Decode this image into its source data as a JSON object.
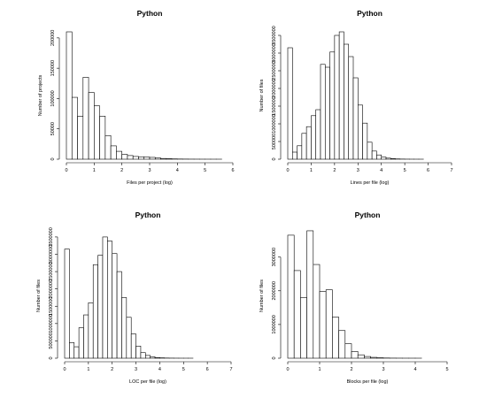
{
  "chart_data": [
    {
      "id": "files-per-project",
      "type": "bar",
      "title": "Python",
      "xlabel": "Files per project (log)",
      "ylabel": "Number of projects",
      "xlim": [
        0,
        6
      ],
      "xticks": [
        0,
        1,
        2,
        3,
        4,
        5,
        6
      ],
      "ylim": [
        0,
        210000
      ],
      "yticks": [
        0,
        50000,
        100000,
        150000,
        200000
      ],
      "bin_width": 0.2,
      "bin_start": 0,
      "values": [
        210000,
        102000,
        71000,
        135000,
        110000,
        88000,
        71000,
        39000,
        22000,
        13000,
        8000,
        6000,
        4500,
        4000,
        3500,
        3000,
        2000,
        1200,
        800,
        500,
        300,
        200,
        120,
        80,
        50,
        30,
        20,
        10,
        5,
        3
      ]
    },
    {
      "id": "lines-per-file",
      "type": "bar",
      "title": "Python",
      "xlabel": "Lines per file (log)",
      "ylabel": "Number of files",
      "xlim": [
        0,
        7
      ],
      "xticks": [
        0,
        1,
        2,
        3,
        4,
        5,
        6,
        7
      ],
      "ylim": [
        0,
        3600000
      ],
      "yticks": [
        0,
        500000,
        1000000,
        1500000,
        2000000,
        2500000,
        3000000,
        3500000
      ],
      "bin_width": 0.2,
      "bin_start": 0,
      "values": [
        3150000,
        200000,
        380000,
        730000,
        920000,
        1230000,
        1400000,
        2680000,
        2600000,
        3030000,
        3500000,
        3600000,
        3250000,
        2900000,
        2300000,
        1530000,
        1020000,
        480000,
        230000,
        120000,
        60000,
        30000,
        15000,
        8000,
        4000,
        2000,
        1000,
        500,
        250,
        120,
        60,
        30,
        15,
        8
      ]
    },
    {
      "id": "loc-per-file",
      "type": "bar",
      "title": "Python",
      "xlabel": "LOC per file (log)",
      "ylabel": "Number of files",
      "xlim": [
        0,
        7
      ],
      "xticks": [
        0,
        1,
        2,
        3,
        4,
        5,
        6,
        7
      ],
      "ylim": [
        0,
        3600000
      ],
      "yticks": [
        0,
        500000,
        1000000,
        1500000,
        2000000,
        2500000,
        3000000,
        3500000
      ],
      "bin_width": 0.2,
      "bin_start": 0,
      "values": [
        3150000,
        450000,
        330000,
        880000,
        1250000,
        1600000,
        2700000,
        2970000,
        3500000,
        3380000,
        3020000,
        2500000,
        1750000,
        1180000,
        700000,
        350000,
        160000,
        80000,
        40000,
        20000,
        10000,
        5000,
        2500,
        1200,
        600,
        300,
        150,
        80,
        40,
        20,
        10,
        5,
        3
      ]
    },
    {
      "id": "blocks-per-file",
      "type": "bar",
      "title": "Python",
      "xlabel": "Blocks per file (log)",
      "ylabel": "Number of files",
      "xlim": [
        0,
        5
      ],
      "xticks": [
        0,
        1,
        2,
        3,
        4,
        5
      ],
      "ylim": [
        0,
        3700000
      ],
      "yticks": [
        0,
        1000000,
        2000000,
        3000000
      ],
      "bin_width": 0.2,
      "bin_start": 0,
      "values": [
        3650000,
        2600000,
        1800000,
        3780000,
        2780000,
        1980000,
        2030000,
        1220000,
        820000,
        430000,
        200000,
        100000,
        50000,
        25000,
        12000,
        6000,
        3000,
        1500,
        800,
        400,
        200,
        100,
        50,
        25,
        12
      ]
    }
  ]
}
